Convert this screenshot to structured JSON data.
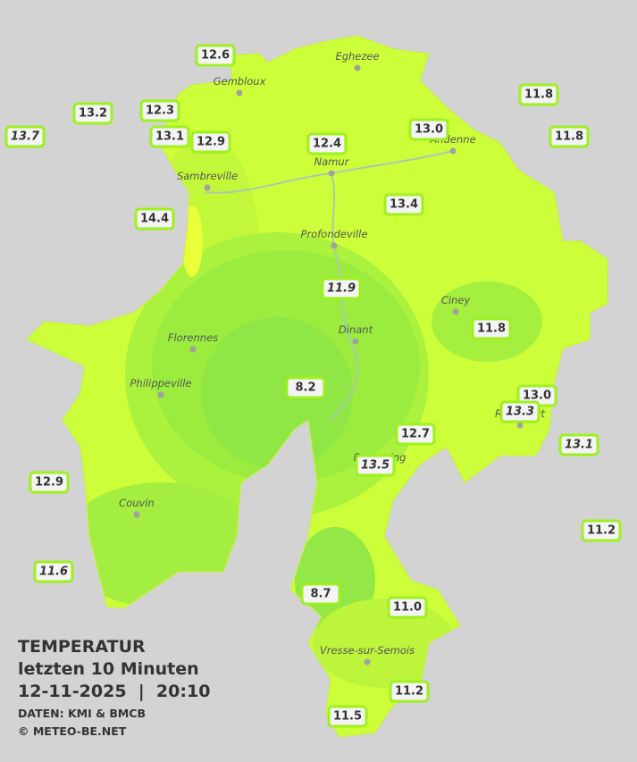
{
  "title": {
    "lines": [
      "TEMPERATUR",
      "letzten 10 Minuten",
      "12-11-2025  |  20:10"
    ],
    "credits": [
      "DATEN: KMI & BMCB",
      "© METEO-BE.NET"
    ]
  },
  "towns": [
    "Eghezee",
    "Gembloux",
    "Andenne",
    "Namur",
    "Sambreville",
    "Profondeville",
    "Ciney",
    "Dinant",
    "Florennes",
    "Philippeville",
    "Rochefort",
    "Beauraing",
    "Couvin",
    "Vresse-sur-Semois"
  ],
  "stations": [
    {
      "label": "12.6",
      "italic": false
    },
    {
      "label": "13.2",
      "italic": false
    },
    {
      "label": "12.3",
      "italic": false
    },
    {
      "label": "13.7",
      "italic": true
    },
    {
      "label": "13.1",
      "italic": false
    },
    {
      "label": "12.9",
      "italic": false
    },
    {
      "label": "12.4",
      "italic": false
    },
    {
      "label": "13.0",
      "italic": false
    },
    {
      "label": "11.8",
      "italic": false
    },
    {
      "label": "11.8",
      "italic": false
    },
    {
      "label": "14.4",
      "italic": false
    },
    {
      "label": "13.4",
      "italic": false
    },
    {
      "label": "11.9",
      "italic": true
    },
    {
      "label": "11.8",
      "italic": false
    },
    {
      "label": "8.2",
      "italic": false
    },
    {
      "label": "13.0",
      "italic": false
    },
    {
      "label": "13.3",
      "italic": true
    },
    {
      "label": "12.7",
      "italic": false
    },
    {
      "label": "13.1",
      "italic": true
    },
    {
      "label": "13.5",
      "italic": true
    },
    {
      "label": "12.9",
      "italic": false
    },
    {
      "label": "11.2",
      "italic": false
    },
    {
      "label": "11.6",
      "italic": true
    },
    {
      "label": "8.7",
      "italic": false
    },
    {
      "label": "11.0",
      "italic": false
    },
    {
      "label": "11.2",
      "italic": false
    },
    {
      "label": "11.5",
      "italic": false
    }
  ]
}
